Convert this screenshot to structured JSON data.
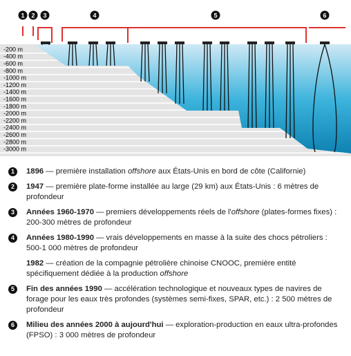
{
  "diagram": {
    "markers": [
      "1",
      "2",
      "3",
      "4",
      "5",
      "6"
    ],
    "depth_labels": [
      "-200 m",
      "-400 m",
      "-600 m",
      "-800 m",
      "-1000 m",
      "-1200 m",
      "-1400 m",
      "-1600 m",
      "-1800 m",
      "-2000 m",
      "-2200 m",
      "-2400 m",
      "-2600 m",
      "-2800 m",
      "-3000 m"
    ]
  },
  "legend": [
    {
      "number": "1",
      "parts": [
        {
          "text": "1896",
          "style": "bold"
        },
        {
          "text": " — première installation ",
          "style": "normal"
        },
        {
          "text": "offshore",
          "style": "italic"
        },
        {
          "text": " aux États-Unis en bord de côte (Californie)",
          "style": "normal"
        }
      ]
    },
    {
      "number": "2",
      "parts": [
        {
          "text": "1947",
          "style": "bold"
        },
        {
          "text": " — première plate-forme installée au large (29 km) aux États-Unis : 6 mètres de profondeur",
          "style": "normal"
        }
      ]
    },
    {
      "number": "3",
      "parts": [
        {
          "text": "Années 1960-1970",
          "style": "bold"
        },
        {
          "text": " — premiers développements réels de l'",
          "style": "normal"
        },
        {
          "text": "offshore",
          "style": "italic"
        },
        {
          "text": " (plates-formes fixes) : 200-300 mètres de profondeur",
          "style": "normal"
        }
      ]
    },
    {
      "number": "4",
      "parts": [
        {
          "text": "Années 1980-1990",
          "style": "bold"
        },
        {
          "text": " — vrais développements en masse à la suite des chocs pétroliers : 500-1 000 mètres de profondeur",
          "style": "normal"
        }
      ]
    },
    {
      "parts": [
        {
          "text": "1982",
          "style": "bold"
        },
        {
          "text": " — création de la compagnie pétrolière chinoise CNOOC, première entité spécifiquement dédiée à la production ",
          "style": "normal"
        },
        {
          "text": "offshore",
          "style": "italic"
        }
      ]
    },
    {
      "number": "5",
      "parts": [
        {
          "text": "Fin des années 1990",
          "style": "bold"
        },
        {
          "text": " — accélération technologique et nouveaux types de navires de forage pour les eaux très profondes (systèmes semi-fixes, SPAR, etc.) : 2 500 mètres de profondeur",
          "style": "normal"
        }
      ]
    },
    {
      "number": "6",
      "parts": [
        {
          "text": "Milieu des années 2000 à aujourd'hui",
          "style": "bold"
        },
        {
          "text": " — exploration-production en eaux ultra-profondes (FPSO) : 3 000 mètres de profondeur",
          "style": "normal"
        }
      ]
    }
  ]
}
